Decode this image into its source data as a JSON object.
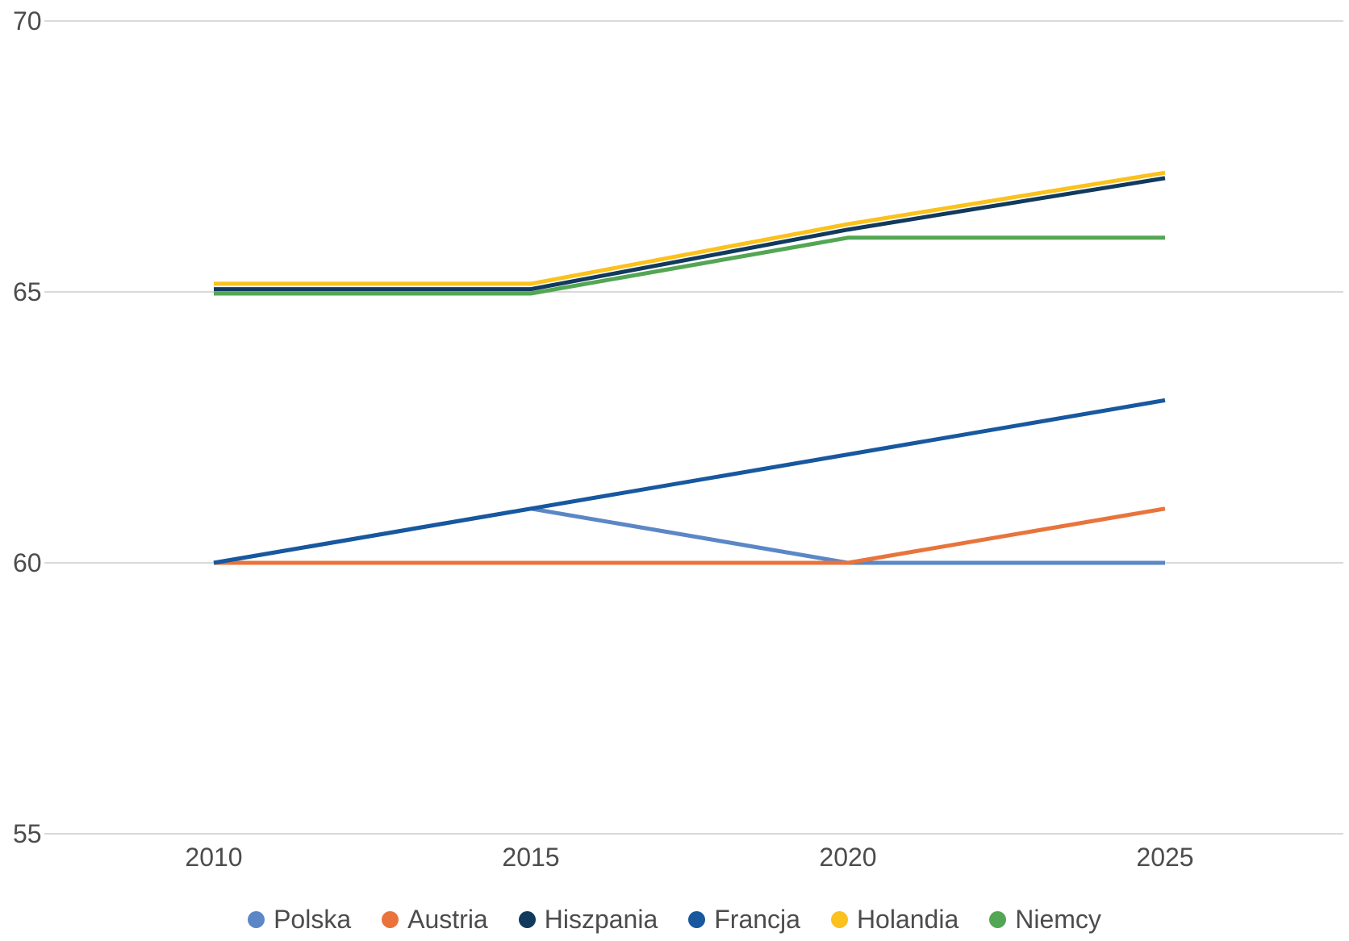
{
  "chart_data": {
    "type": "line",
    "title": "",
    "xlabel": "",
    "ylabel": "",
    "categories": [
      "2010",
      "2015",
      "2020",
      "2025"
    ],
    "series": [
      {
        "name": "Polska",
        "color": "#5b87c6",
        "values": [
          60,
          61,
          60,
          60
        ]
      },
      {
        "name": "Austria",
        "color": "#e8743c",
        "values": [
          60,
          60,
          60,
          61
        ]
      },
      {
        "name": "Hiszpania",
        "color": "#113a5d",
        "values": [
          65.05,
          65.05,
          66.15,
          67.1
        ]
      },
      {
        "name": "Francja",
        "color": "#17589f",
        "values": [
          60,
          61,
          62,
          63
        ]
      },
      {
        "name": "Holandia",
        "color": "#fbc11c",
        "values": [
          65.15,
          65.15,
          66.25,
          67.2
        ]
      },
      {
        "name": "Niemcy",
        "color": "#53a653",
        "values": [
          64.97,
          64.97,
          66.0,
          66.0
        ]
      }
    ],
    "y_axis": {
      "ticks": [
        70,
        65,
        60,
        55
      ],
      "min": 55,
      "max": 70,
      "gridlines": true
    },
    "legend_position": "bottom",
    "grid_color": "#d9d9d9",
    "text_color": "#4c4c4c"
  }
}
